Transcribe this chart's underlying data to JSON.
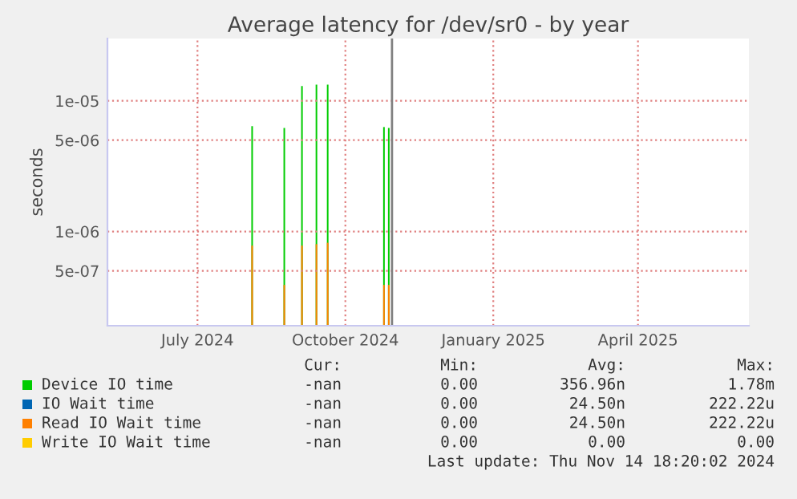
{
  "chart_data": {
    "type": "bar",
    "title": "Average latency for /dev/sr0 - by year",
    "ylabel": "seconds",
    "x": [
      "2024-08-04",
      "2024-08-24",
      "2024-09-04",
      "2024-09-13",
      "2024-09-20",
      "2024-10-25",
      "2024-10-28"
    ],
    "series": [
      {
        "name": "Device IO time",
        "color": "#00cc00",
        "values": [
          6.4e-06,
          6.2e-06,
          1.3e-05,
          1.33e-05,
          1.33e-05,
          6.3e-06,
          6.2e-06
        ]
      },
      {
        "name": "IO Wait time",
        "color": "#0066b3",
        "values": [
          null,
          null,
          null,
          null,
          null,
          null,
          null
        ]
      },
      {
        "name": "Read IO Wait time",
        "color": "#ff8000",
        "values": [
          7.8e-07,
          3.9e-07,
          7.8e-07,
          8e-07,
          8.2e-07,
          3.9e-07,
          3.9e-07
        ]
      },
      {
        "name": "Write IO Wait time",
        "color": "#ffcc00",
        "values": [
          null,
          null,
          null,
          null,
          null,
          null,
          null
        ]
      }
    ],
    "log": "y",
    "ylim": [
      1.9e-07,
      3e-05
    ],
    "yticks": [
      {
        "value": 5e-07,
        "label": "5e-07"
      },
      {
        "value": 1e-06,
        "label": "1e-06"
      },
      {
        "value": 5e-06,
        "label": "5e-06"
      },
      {
        "value": 1e-05,
        "label": "1e-05"
      }
    ],
    "xlim": [
      "2024-05-06",
      "2025-06-09"
    ],
    "xticks": [
      {
        "value": "2024-07-01",
        "label": "July 2024"
      },
      {
        "value": "2024-10-01",
        "label": "October 2024"
      },
      {
        "value": "2025-01-01",
        "label": "January 2025"
      },
      {
        "value": "2025-04-01",
        "label": "April 2025"
      }
    ],
    "ref_lines": [
      {
        "axis": "x",
        "value": "2024-10-30",
        "color": "#808080"
      }
    ],
    "grid": true,
    "legend": "bottom",
    "annotations": [
      "Cur:",
      "Min:",
      "Avg:",
      "Max:",
      "-nan",
      "0.00",
      "356.96n",
      "1.78m",
      "-nan",
      "0.00",
      "24.50n",
      "222.22u",
      "-nan",
      "0.00",
      "24.50n",
      "222.22u",
      "-nan",
      "0.00",
      "0.00",
      "0.00",
      "Last update: Thu Nov 14 18:20:02 2024"
    ]
  }
}
